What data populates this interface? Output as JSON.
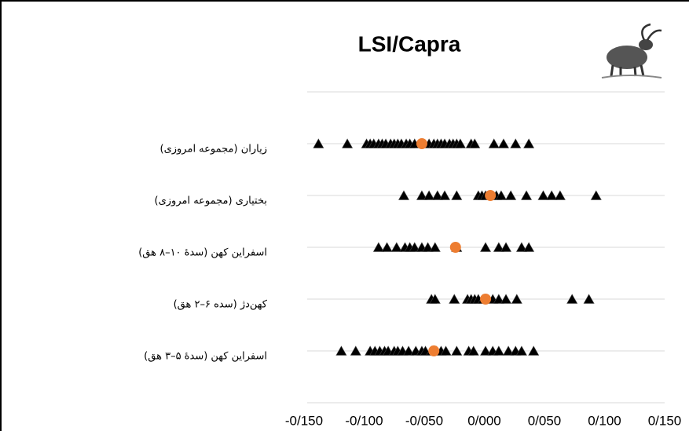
{
  "chart_data": {
    "type": "strip",
    "title": "LSI/Capra",
    "categories": [
      "زیاران (مجموعه امروزی)",
      "بختیاری (مجموعه امروزی)",
      "اسفراین کهن (سدهٔ ۱۰–۸ هق)",
      "کهن‌دژ (سده ۶–۲ هق)",
      "اسفراین کهن (سدهٔ ۵–۳ هق)"
    ],
    "values": [
      [
        -0.138,
        -0.114,
        -0.098,
        -0.095,
        -0.092,
        -0.088,
        -0.085,
        -0.082,
        -0.078,
        -0.075,
        -0.072,
        -0.069,
        -0.065,
        -0.062,
        -0.058,
        -0.046,
        -0.042,
        -0.039,
        -0.036,
        -0.033,
        -0.029,
        -0.026,
        -0.023,
        -0.02,
        -0.011,
        -0.008,
        0.008,
        0.016,
        0.026,
        0.037
      ],
      [
        -0.067,
        -0.052,
        -0.046,
        -0.039,
        -0.033,
        -0.023,
        -0.005,
        -0.002,
        0.001,
        0.005,
        0.01,
        0.014,
        0.022,
        0.035,
        0.049,
        0.056,
        0.063,
        0.093
      ],
      [
        -0.088,
        -0.081,
        -0.073,
        -0.066,
        -0.062,
        -0.058,
        -0.052,
        -0.047,
        -0.041,
        -0.023,
        0.001,
        0.012,
        0.018,
        0.031,
        0.037
      ],
      [
        -0.044,
        -0.041,
        -0.025,
        -0.014,
        -0.011,
        -0.008,
        -0.005,
        -0.001,
        0.007,
        0.012,
        0.018,
        0.027,
        0.073,
        0.087
      ],
      [
        -0.119,
        -0.107,
        -0.095,
        -0.091,
        -0.087,
        -0.083,
        -0.08,
        -0.075,
        -0.072,
        -0.068,
        -0.063,
        -0.057,
        -0.052,
        -0.049,
        -0.044,
        -0.04,
        -0.036,
        -0.032,
        -0.023,
        -0.013,
        -0.009,
        0.001,
        0.007,
        0.012,
        0.02,
        0.026,
        0.031,
        0.041
      ]
    ],
    "means": [
      -0.052,
      0.005,
      -0.024,
      0.001,
      -0.042
    ],
    "point_color": "#000000",
    "mean_color": "#ed7d31",
    "xlim": [
      -0.15,
      0.15
    ],
    "xticks": [
      {
        "value": -0.15,
        "label": "-0/150"
      },
      {
        "value": -0.1,
        "label": "-0/100"
      },
      {
        "value": -0.05,
        "label": "-0/050"
      },
      {
        "value": 0,
        "label": "0/000"
      },
      {
        "value": 0.05,
        "label": "0/050"
      },
      {
        "value": 0.1,
        "label": "0/100"
      },
      {
        "value": 0.15,
        "label": "0/150"
      }
    ],
    "grid": true
  }
}
